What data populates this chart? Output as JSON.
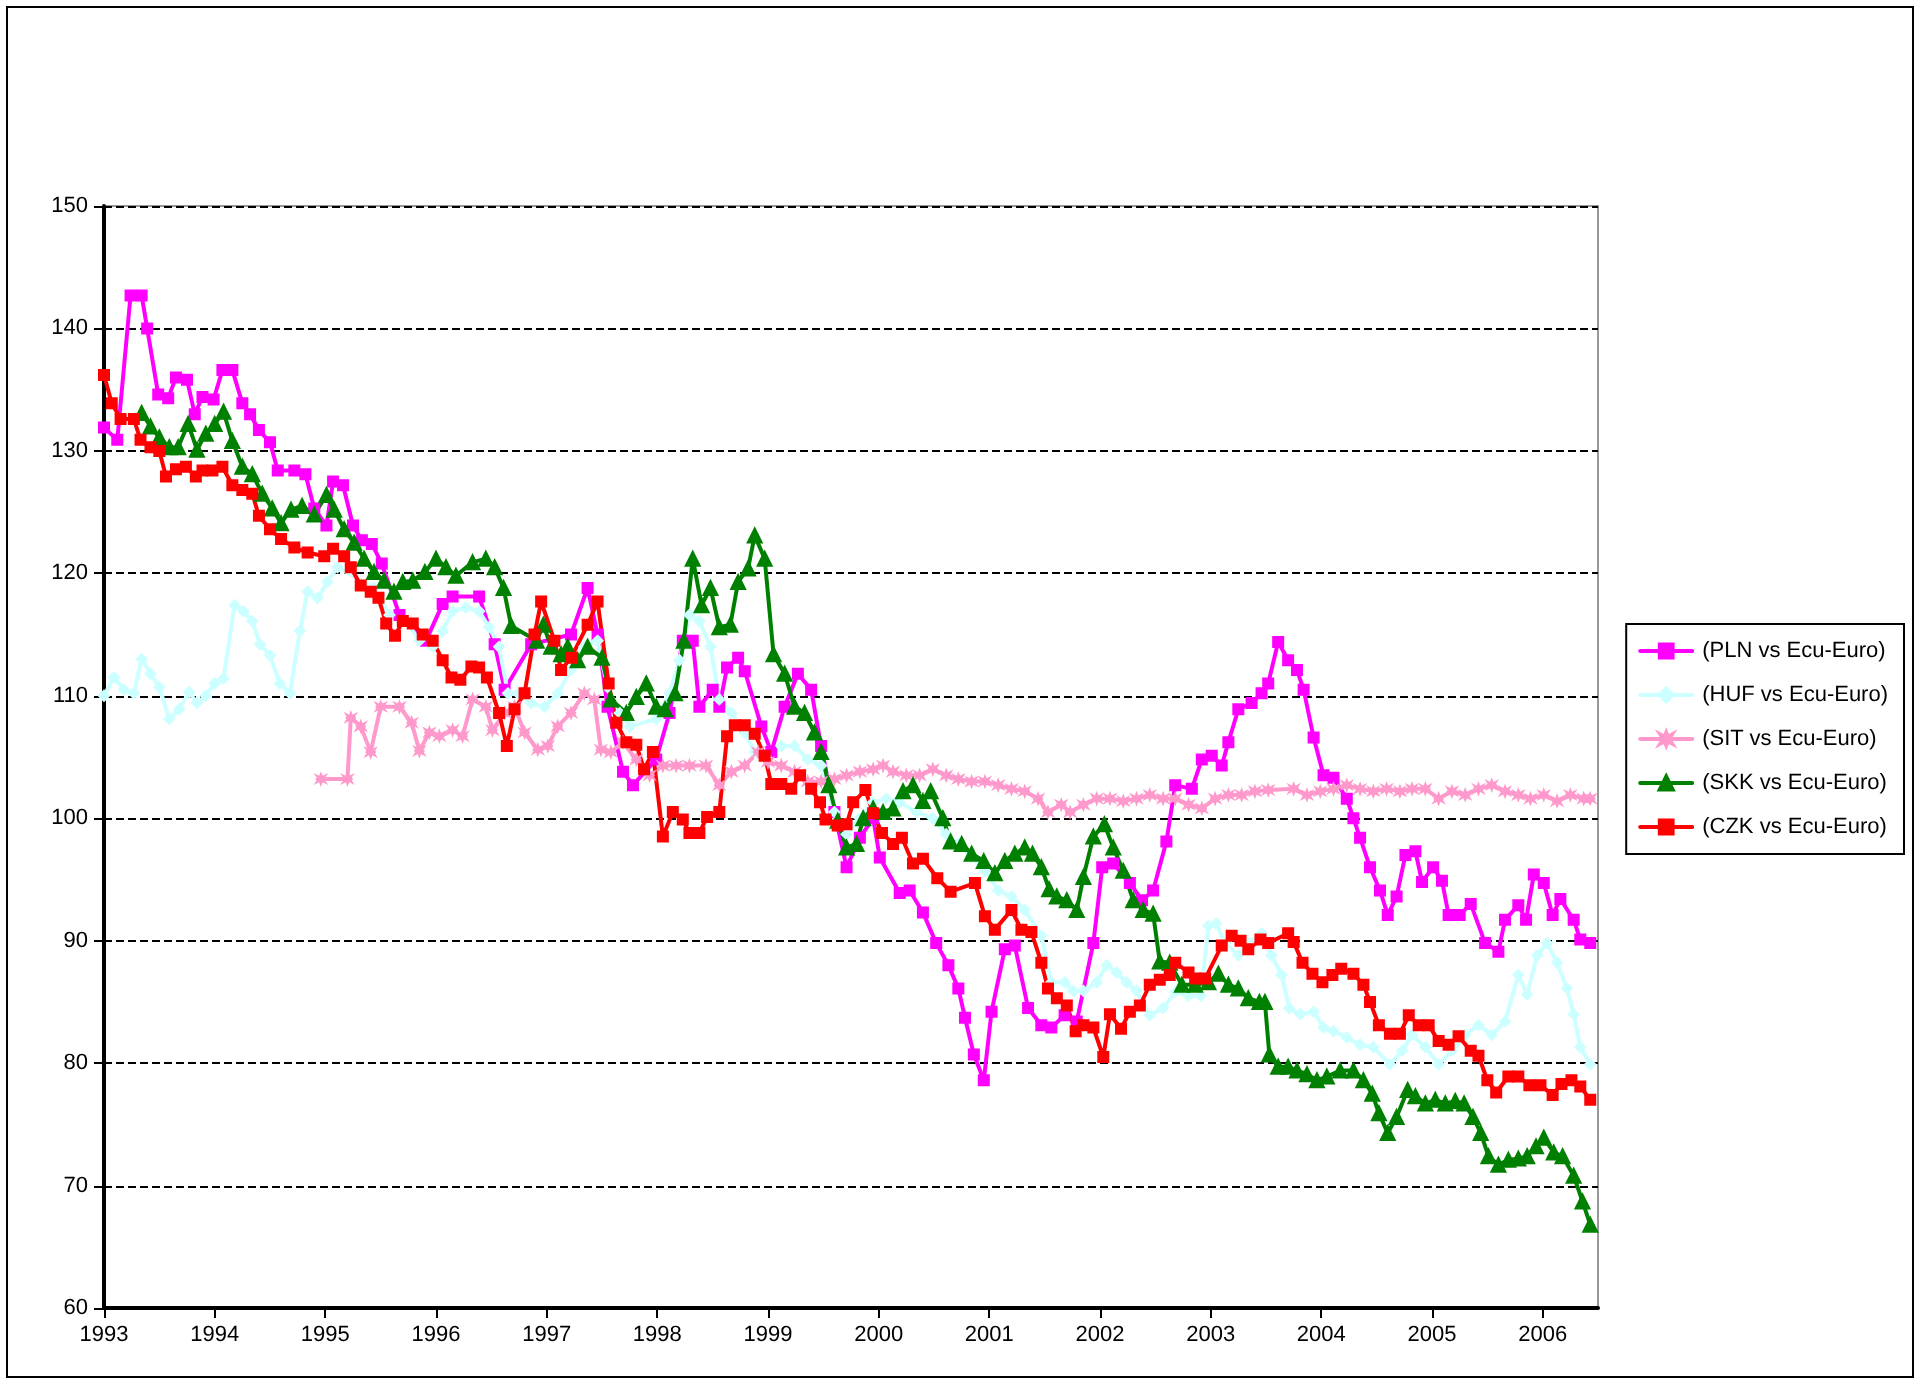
{
  "chart_data": {
    "type": "line",
    "xlim": [
      1993,
      2006.5
    ],
    "xticks": [
      1993,
      1994,
      1995,
      1996,
      1997,
      1998,
      1999,
      2000,
      2001,
      2002,
      2003,
      2004,
      2005,
      2006
    ],
    "ylim": [
      60,
      150
    ],
    "yticks": [
      60,
      70,
      80,
      90,
      100,
      110,
      120,
      130,
      140,
      150
    ],
    "grid": "y",
    "legend": "right",
    "line_style": "solid",
    "series": [
      {
        "name": "(PLN vs Ecu-Euro)",
        "color": "#ff00ff",
        "marker": "square",
        "x": [
          1993.0,
          1993.12,
          1993.24,
          1993.34,
          1993.39,
          1993.49,
          1993.58,
          1993.65,
          1993.75,
          1993.82,
          1993.89,
          1993.99,
          1994.07,
          1994.16,
          1994.25,
          1994.32,
          1994.4,
          1994.5,
          1994.57,
          1994.72,
          1994.82,
          1994.9,
          1995.01,
          1995.07,
          1995.16,
          1995.25,
          1995.33,
          1995.42,
          1995.51,
          1995.67,
          1995.91,
          1996.06,
          1996.15,
          1996.39,
          1996.53,
          1996.62,
          1996.86,
          1997.22,
          1997.37,
          1997.46,
          1997.55,
          1997.69,
          1997.78,
          1997.99,
          1998.11,
          1998.23,
          1998.32,
          1998.38,
          1998.5,
          1998.56,
          1998.63,
          1998.73,
          1998.79,
          1998.94,
          1999.03,
          1999.15,
          1999.27,
          1999.39,
          1999.48,
          1999.6,
          1999.71,
          1999.83,
          1999.95,
          2000.01,
          2000.19,
          2000.28,
          2000.4,
          2000.52,
          2000.63,
          2000.72,
          2000.78,
          2000.86,
          2000.95,
          2001.02,
          2001.14,
          2001.23,
          2001.35,
          2001.47,
          2001.56,
          2001.68,
          2001.79,
          2001.94,
          2002.02,
          2002.12,
          2002.27,
          2002.38,
          2002.48,
          2002.6,
          2002.68,
          2002.83,
          2002.92,
          2003.01,
          2003.1,
          2003.16,
          2003.25,
          2003.37,
          2003.46,
          2003.52,
          2003.61,
          2003.7,
          2003.78,
          2003.84,
          2003.93,
          2004.02,
          2004.11,
          2004.23,
          2004.29,
          2004.35,
          2004.44,
          2004.53,
          2004.6,
          2004.68,
          2004.76,
          2004.85,
          2004.91,
          2005.01,
          2005.09,
          2005.15,
          2005.25,
          2005.35,
          2005.48,
          2005.6,
          2005.66,
          2005.78,
          2005.85,
          2005.92,
          2006.01,
          2006.09,
          2006.16,
          2006.28,
          2006.34,
          2006.43
        ],
        "values": [
          131.9,
          130.9,
          142.7,
          142.7,
          140,
          134.6,
          134.3,
          136,
          135.8,
          133,
          134.4,
          134.2,
          136.6,
          136.6,
          133.9,
          133,
          131.7,
          130.7,
          128.4,
          128.4,
          128.1,
          125.3,
          123.9,
          127.5,
          127.2,
          123.9,
          122.7,
          122.4,
          120.8,
          116.6,
          114.5,
          117.5,
          118.1,
          118.1,
          114.2,
          110.5,
          114.2,
          115,
          118.8,
          115,
          109.1,
          103.8,
          102.7,
          104.8,
          108.6,
          114.5,
          114.5,
          109.1,
          110.5,
          109.1,
          112.3,
          113.1,
          112,
          107.5,
          105.4,
          109.1,
          111.8,
          110.5,
          105.9,
          100.5,
          96,
          98.4,
          100,
          96.8,
          93.9,
          94.1,
          92.3,
          89.8,
          88,
          86.1,
          83.7,
          80.7,
          78.6,
          84.2,
          89.3,
          89.6,
          84.5,
          83.1,
          82.9,
          83.9,
          83.4,
          89.8,
          96,
          96.3,
          94.7,
          93.3,
          94.1,
          98.1,
          102.7,
          102.4,
          104.8,
          105.1,
          104.3,
          106.2,
          108.9,
          109.4,
          110.2,
          111,
          114.4,
          112.9,
          112.1,
          110.5,
          106.6,
          103.5,
          103.3,
          101.6,
          100,
          98.4,
          96,
          94.1,
          92.1,
          93.6,
          97,
          97.3,
          94.8,
          96,
          94.9,
          92.1,
          92.1,
          93,
          89.8,
          89.1,
          91.7,
          92.9,
          91.7,
          95.4,
          94.7,
          92.1,
          93.4,
          91.7,
          90.1,
          89.8
        ]
      },
      {
        "name": "(HUF vs Ecu-Euro)",
        "color": "#ccffff",
        "marker": "diamond",
        "x": [
          1993.0,
          1993.09,
          1993.18,
          1993.27,
          1993.34,
          1993.42,
          1993.5,
          1993.59,
          1993.68,
          1993.77,
          1993.84,
          1993.92,
          1994.0,
          1994.08,
          1994.18,
          1994.26,
          1994.34,
          1994.41,
          1994.5,
          1994.59,
          1994.68,
          1994.77,
          1994.84,
          1994.93,
          1995.02,
          1995.11,
          1995.44,
          1995.58,
          1995.73,
          1995.85,
          1995.97,
          1996.06,
          1996.15,
          1996.27,
          1996.39,
          1996.48,
          1996.57,
          1996.65,
          1996.74,
          1996.86,
          1996.98,
          1997.1,
          1997.22,
          1997.34,
          1997.46,
          1997.55,
          1997.66,
          1997.75,
          1997.99,
          1998.11,
          1998.2,
          1998.29,
          1998.38,
          1998.48,
          1998.56,
          1998.67,
          1998.79,
          1998.88,
          1999.0,
          1999.12,
          1999.24,
          1999.36,
          1999.48,
          1999.6,
          1999.71,
          1999.83,
          1999.95,
          2000.07,
          2000.19,
          2000.34,
          2000.49,
          2000.61,
          2000.72,
          2000.84,
          2000.96,
          2001.08,
          2001.2,
          2001.32,
          2001.47,
          2001.56,
          2001.68,
          2001.76,
          2001.85,
          2001.97,
          2002.06,
          2002.15,
          2002.24,
          2002.33,
          2002.45,
          2002.57,
          2002.68,
          2002.8,
          2002.91,
          2002.98,
          2003.05,
          2003.13,
          2003.25,
          2003.34,
          2003.46,
          2003.55,
          2003.64,
          2003.71,
          2003.81,
          2003.93,
          2004.02,
          2004.11,
          2004.23,
          2004.35,
          2004.47,
          2004.62,
          2004.73,
          2004.82,
          2004.94,
          2005.06,
          2005.18,
          2005.3,
          2005.42,
          2005.54,
          2005.66,
          2005.78,
          2005.86,
          2005.95,
          2006.04,
          2006.13,
          2006.22,
          2006.28,
          2006.34,
          2006.43
        ],
        "values": [
          110,
          111.5,
          110.5,
          110.2,
          113,
          111.8,
          110.7,
          108.1,
          108.9,
          110.3,
          109.4,
          110,
          111,
          111.4,
          117.4,
          116.9,
          116.1,
          114.2,
          113.3,
          111,
          110.2,
          115.3,
          118.5,
          118,
          119.3,
          120.5,
          118.8,
          116.6,
          116.1,
          114.5,
          114,
          115.3,
          116.9,
          117.2,
          116.9,
          115.6,
          114,
          110.2,
          110.2,
          109.4,
          109.1,
          110.2,
          112.1,
          114,
          114.5,
          110.7,
          108.6,
          107.5,
          108.1,
          110.2,
          112.9,
          116.6,
          116.1,
          114,
          109.7,
          108.6,
          107,
          105.4,
          104.8,
          105.9,
          105.9,
          104.8,
          104.3,
          100.5,
          98.7,
          100,
          101.3,
          101.6,
          101.3,
          100.5,
          100,
          98.7,
          97.9,
          96.8,
          95.7,
          94.1,
          93.6,
          92.5,
          90.4,
          86.6,
          86.6,
          85.9,
          85.9,
          86.6,
          88,
          87.4,
          86.6,
          85.9,
          83.9,
          84.5,
          85.8,
          85.5,
          85.5,
          91.2,
          91.4,
          89.8,
          88.8,
          89.8,
          90.6,
          88.8,
          87.2,
          84.5,
          84,
          84.2,
          82.9,
          82.6,
          82.1,
          81.5,
          81.3,
          79.9,
          81,
          82.3,
          81.3,
          79.9,
          81,
          82.3,
          83.1,
          82.3,
          83.4,
          87.2,
          85.6,
          88.8,
          89.8,
          88.2,
          86.1,
          84,
          81.3,
          79.9
        ]
      },
      {
        "name": "(SIT vs Ecu-Euro)",
        "color": "#ff99cc",
        "marker": "star",
        "x": [
          1994.96,
          1995.2,
          1995.23,
          1995.32,
          1995.41,
          1995.5,
          1995.67,
          1995.78,
          1995.85,
          1995.94,
          1996.03,
          1996.15,
          1996.24,
          1996.33,
          1996.45,
          1996.51,
          1996.62,
          1996.71,
          1996.8,
          1996.92,
          1997.01,
          1997.1,
          1997.22,
          1997.34,
          1997.43,
          1997.49,
          1997.58,
          1997.69,
          1997.81,
          1997.93,
          1998.05,
          1998.17,
          1998.29,
          1998.44,
          1998.56,
          1998.67,
          1998.79,
          1998.91,
          1999.0,
          1999.12,
          1999.24,
          1999.36,
          1999.48,
          1999.6,
          1999.71,
          1999.83,
          1999.95,
          2000.04,
          2000.13,
          2000.25,
          2000.37,
          2000.49,
          2000.61,
          2000.72,
          2000.84,
          2000.96,
          2001.08,
          2001.2,
          2001.32,
          2001.44,
          2001.53,
          2001.65,
          2001.73,
          2001.85,
          2001.97,
          2002.09,
          2002.21,
          2002.33,
          2002.45,
          2002.57,
          2002.68,
          2002.8,
          2002.92,
          2003.04,
          2003.16,
          2003.28,
          2003.4,
          2003.52,
          2003.75,
          2003.87,
          2003.99,
          2004.11,
          2004.23,
          2004.35,
          2004.47,
          2004.59,
          2004.71,
          2004.82,
          2004.94,
          2005.06,
          2005.18,
          2005.3,
          2005.42,
          2005.54,
          2005.66,
          2005.78,
          2005.89,
          2006.01,
          2006.13,
          2006.25,
          2006.37,
          2006.43
        ],
        "values": [
          103.2,
          103.2,
          108.2,
          107.5,
          105.4,
          109.1,
          109.1,
          107.8,
          105.5,
          107,
          106.7,
          107.2,
          106.7,
          109.7,
          109.1,
          107.2,
          108.6,
          109.1,
          107,
          105.6,
          105.9,
          107.5,
          108.6,
          110.2,
          109.7,
          105.6,
          105.4,
          106.2,
          104.8,
          103.5,
          104.3,
          104.3,
          104.3,
          104.3,
          102.7,
          103.8,
          104.3,
          105.4,
          104.6,
          104.3,
          103.8,
          103,
          103,
          103.2,
          103.5,
          103.8,
          104,
          104.3,
          103.8,
          103.5,
          103.5,
          104,
          103.5,
          103.2,
          103,
          103,
          102.7,
          102.4,
          102.2,
          101.6,
          100.5,
          101.1,
          100.5,
          101.1,
          101.6,
          101.6,
          101.4,
          101.6,
          101.9,
          101.6,
          101.6,
          101.1,
          100.8,
          101.6,
          101.9,
          101.9,
          102.2,
          102.3,
          102.4,
          101.9,
          102.2,
          102.4,
          102.7,
          102.4,
          102.2,
          102.4,
          102.2,
          102.4,
          102.4,
          101.6,
          102.2,
          101.9,
          102.4,
          102.7,
          102.2,
          101.9,
          101.6,
          101.9,
          101.4,
          101.9,
          101.6,
          101.6
        ]
      },
      {
        "name": "(SKK vs Ecu-Euro)",
        "color": "#008000",
        "marker": "triangle",
        "x": [
          1993.34,
          1993.42,
          1993.5,
          1993.59,
          1993.67,
          1993.76,
          1993.84,
          1993.92,
          1994.0,
          1994.08,
          1994.16,
          1994.25,
          1994.34,
          1994.43,
          1994.52,
          1994.6,
          1994.69,
          1994.79,
          1994.9,
          1995.01,
          1995.08,
          1995.17,
          1995.26,
          1995.35,
          1995.44,
          1995.53,
          1995.62,
          1995.7,
          1995.79,
          1995.9,
          1996.0,
          1996.09,
          1996.18,
          1996.33,
          1996.45,
          1996.53,
          1996.61,
          1996.68,
          1996.91,
          1996.97,
          1997.04,
          1997.13,
          1997.19,
          1997.28,
          1997.37,
          1997.5,
          1997.58,
          1997.72,
          1997.81,
          1997.9,
          1997.99,
          1998.07,
          1998.16,
          1998.24,
          1998.32,
          1998.4,
          1998.48,
          1998.56,
          1998.66,
          1998.73,
          1998.82,
          1998.88,
          1998.97,
          1999.05,
          1999.15,
          1999.24,
          1999.33,
          1999.42,
          1999.48,
          1999.55,
          1999.63,
          1999.71,
          1999.8,
          1999.86,
          1999.95,
          2000.04,
          2000.13,
          2000.22,
          2000.31,
          2000.4,
          2000.47,
          2000.58,
          2000.65,
          2000.75,
          2000.84,
          2000.95,
          2001.05,
          2001.14,
          2001.23,
          2001.32,
          2001.39,
          2001.47,
          2001.54,
          2001.61,
          2001.7,
          2001.79,
          2001.85,
          2001.94,
          2002.04,
          2002.12,
          2002.21,
          2002.3,
          2002.39,
          2002.48,
          2002.54,
          2002.63,
          2002.74,
          2002.86,
          2002.98,
          2003.07,
          2003.16,
          2003.25,
          2003.34,
          2003.44,
          2003.49,
          2003.53,
          2003.61,
          2003.7,
          2003.78,
          2003.87,
          2003.96,
          2004.05,
          2004.17,
          2004.29,
          2004.38,
          2004.46,
          2004.52,
          2004.6,
          2004.68,
          2004.78,
          2004.85,
          2004.94,
          2005.03,
          2005.12,
          2005.21,
          2005.29,
          2005.37,
          2005.44,
          2005.51,
          2005.6,
          2005.69,
          2005.78,
          2005.86,
          2005.94,
          2006.01,
          2006.1,
          2006.18,
          2006.28,
          2006.36,
          2006.43
        ],
        "values": [
          133.1,
          132,
          131.1,
          130.3,
          130.3,
          132.2,
          130.1,
          131.4,
          132.2,
          133.2,
          130.8,
          128.7,
          128.1,
          126.5,
          125.3,
          124.1,
          125.2,
          125.5,
          124.8,
          126.4,
          125.2,
          123.6,
          122.5,
          121.2,
          120.1,
          119.4,
          118.5,
          119.3,
          119.4,
          120.1,
          121.2,
          120.5,
          119.8,
          120.9,
          121.2,
          120.5,
          118.8,
          115.7,
          114.5,
          115.8,
          114,
          113.4,
          114,
          112.9,
          114,
          113.1,
          109.7,
          108.6,
          109.9,
          111,
          109.1,
          108.9,
          110.2,
          114.5,
          121.2,
          117.4,
          118.8,
          115.6,
          115.8,
          119.3,
          120.4,
          123.1,
          121.2,
          113.4,
          111.8,
          109.1,
          108.6,
          107,
          105.4,
          102.7,
          99.8,
          97.6,
          97.9,
          100,
          100.8,
          100.5,
          100.8,
          102.2,
          102.7,
          101.4,
          102.2,
          100,
          98.1,
          97.9,
          97.1,
          96.5,
          95.5,
          96.5,
          97.1,
          97.6,
          97.1,
          96,
          94.2,
          93.6,
          93.3,
          92.5,
          95.2,
          98.5,
          99.5,
          97.6,
          95.7,
          93.3,
          92.5,
          92.2,
          88.3,
          88.2,
          86.4,
          86.4,
          86.6,
          87.3,
          86.4,
          86.1,
          85.3,
          85,
          85,
          80.7,
          79.7,
          79.7,
          79.4,
          79.1,
          78.6,
          78.9,
          79.4,
          79.4,
          78.6,
          77.5,
          75.9,
          74.3,
          75.6,
          77.8,
          77.3,
          76.7,
          77,
          76.7,
          76.9,
          76.7,
          75.6,
          74.3,
          72.4,
          71.7,
          72.1,
          72.2,
          72.4,
          73.2,
          73.9,
          72.7,
          72.4,
          70.8,
          68.7,
          66.8
        ]
      },
      {
        "name": "(CZK vs Ecu-Euro)",
        "color": "#ff0000",
        "marker": "square",
        "x": [
          1993.0,
          1993.07,
          1993.15,
          1993.27,
          1993.33,
          1993.42,
          1993.5,
          1993.56,
          1993.65,
          1993.74,
          1993.83,
          1993.89,
          1993.98,
          1994.07,
          1994.16,
          1994.25,
          1994.34,
          1994.4,
          1994.5,
          1994.6,
          1994.72,
          1994.84,
          1994.99,
          1995.07,
          1995.17,
          1995.23,
          1995.32,
          1995.41,
          1995.48,
          1995.55,
          1995.63,
          1995.7,
          1995.79,
          1995.88,
          1995.97,
          1996.06,
          1996.14,
          1996.22,
          1996.32,
          1996.39,
          1996.46,
          1996.57,
          1996.64,
          1996.71,
          1996.8,
          1996.89,
          1996.95,
          1997.07,
          1997.13,
          1997.22,
          1997.37,
          1997.46,
          1997.56,
          1997.63,
          1997.72,
          1997.81,
          1997.88,
          1997.96,
          1998.05,
          1998.14,
          1998.23,
          1998.29,
          1998.38,
          1998.45,
          1998.56,
          1998.63,
          1998.7,
          1998.79,
          1998.88,
          1998.97,
          1999.03,
          1999.12,
          1999.21,
          1999.29,
          1999.39,
          1999.47,
          1999.52,
          1999.63,
          1999.71,
          1999.77,
          1999.88,
          1999.95,
          2000.03,
          2000.13,
          2000.21,
          2000.31,
          2000.4,
          2000.53,
          2000.65,
          2000.87,
          2000.96,
          2001.05,
          2001.2,
          2001.29,
          2001.38,
          2001.47,
          2001.53,
          2001.61,
          2001.7,
          2001.78,
          2001.85,
          2001.94,
          2002.03,
          2002.09,
          2002.19,
          2002.27,
          2002.36,
          2002.45,
          2002.54,
          2002.63,
          2002.68,
          2002.8,
          2002.86,
          2002.95,
          2003.1,
          2003.19,
          2003.27,
          2003.34,
          2003.45,
          2003.52,
          2003.7,
          2003.75,
          2003.83,
          2003.92,
          2004.01,
          2004.1,
          2004.18,
          2004.29,
          2004.38,
          2004.44,
          2004.52,
          2004.62,
          2004.71,
          2004.79,
          2004.88,
          2004.97,
          2005.06,
          2005.15,
          2005.24,
          2005.35,
          2005.42,
          2005.5,
          2005.58,
          2005.69,
          2005.78,
          2005.88,
          2005.98,
          2006.09,
          2006.17,
          2006.26,
          2006.34,
          2006.43
        ],
        "values": [
          136.2,
          133.9,
          132.6,
          132.6,
          130.9,
          130.3,
          130,
          127.9,
          128.5,
          128.7,
          127.9,
          128.4,
          128.4,
          128.7,
          127.2,
          126.8,
          126.5,
          124.7,
          123.6,
          122.8,
          122.1,
          121.7,
          121.4,
          122,
          121.4,
          120.5,
          119,
          118.5,
          118,
          115.9,
          114.9,
          116.1,
          115.9,
          115,
          114.5,
          112.9,
          111.5,
          111.3,
          112.4,
          112.3,
          111.5,
          108.6,
          105.9,
          108.9,
          110.2,
          115,
          117.7,
          114.5,
          112.1,
          113.1,
          115.8,
          117.7,
          111,
          107.8,
          106.2,
          106,
          104,
          105.4,
          98.5,
          100.5,
          99.9,
          98.8,
          98.8,
          100.1,
          100.5,
          106.7,
          107.6,
          107.6,
          106.9,
          105.1,
          102.8,
          102.8,
          102.4,
          103.5,
          102.4,
          101.3,
          99.9,
          99.4,
          99.5,
          101.3,
          102.3,
          100.4,
          98.8,
          97.9,
          98.4,
          96.3,
          96.7,
          95.1,
          94,
          94.7,
          92,
          90.9,
          92.5,
          90.9,
          90.7,
          88.2,
          86.1,
          85.3,
          84.7,
          82.6,
          83.1,
          82.9,
          80.5,
          84,
          82.8,
          84.2,
          84.7,
          86.4,
          86.8,
          87.2,
          88.2,
          87.4,
          86.9,
          86.9,
          89.6,
          90.4,
          90,
          89.3,
          90.1,
          89.8,
          90.6,
          89.9,
          88.2,
          87.3,
          86.6,
          87.2,
          87.7,
          87.3,
          86.4,
          85,
          83.1,
          82.4,
          82.4,
          83.9,
          83.1,
          83.1,
          81.8,
          81.5,
          82.2,
          81,
          80.6,
          78.6,
          77.6,
          78.9,
          78.9,
          78.2,
          78.2,
          77.4,
          78.3,
          78.6,
          78.1,
          77
        ]
      }
    ]
  }
}
